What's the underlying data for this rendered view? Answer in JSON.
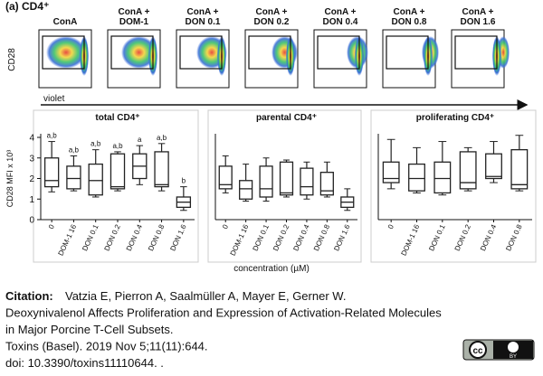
{
  "panel_label": "(a) CD4⁺",
  "flow": {
    "y_label": "CD28",
    "x_label": "violet",
    "plots": [
      {
        "title": [
          "ConA"
        ]
      },
      {
        "title": [
          "ConA +",
          "DOM-1"
        ]
      },
      {
        "title": [
          "ConA +",
          "DON 0.1"
        ]
      },
      {
        "title": [
          "ConA +",
          "DON 0.2"
        ]
      },
      {
        "title": [
          "ConA +",
          "DON 0.4"
        ]
      },
      {
        "title": [
          "ConA +",
          "DON 0.8"
        ]
      },
      {
        "title": [
          "ConA +",
          "DON 1.6"
        ]
      }
    ]
  },
  "chart_data": [
    {
      "type": "box",
      "title": "total CD4⁺",
      "ylabel": "CD28 MFI x 10³",
      "categories": [
        "0",
        "DOM-1 16",
        "DON 0.1",
        "DON 0.2",
        "DON 0.4",
        "DON 0.8",
        "DON 1.6"
      ],
      "min": [
        1.35,
        1.4,
        1.1,
        1.4,
        1.7,
        1.4,
        0.45
      ],
      "q1": [
        1.6,
        1.5,
        1.2,
        1.5,
        2.0,
        1.6,
        0.6
      ],
      "median": [
        1.9,
        2.0,
        1.9,
        1.6,
        2.6,
        1.7,
        0.85
      ],
      "q3": [
        3.0,
        2.6,
        2.7,
        3.2,
        3.2,
        3.3,
        1.1
      ],
      "max": [
        3.8,
        3.1,
        3.4,
        3.3,
        3.6,
        3.7,
        1.6
      ],
      "annotations": [
        "a,b",
        "a,b",
        "a,b",
        "a,b",
        "a",
        "a,b",
        "b"
      ],
      "ylim": [
        0,
        4
      ],
      "yticks": [
        0,
        1,
        2,
        3,
        4
      ],
      "color": "#222222"
    },
    {
      "type": "box",
      "title": "parental CD4⁺",
      "xlabel": "concentration (µM)",
      "categories": [
        "0",
        "DOM-1 16",
        "DON 0.1",
        "DON 0.2",
        "DON 0.4",
        "DON 0.8",
        "DON 1.6"
      ],
      "min": [
        1.3,
        0.9,
        0.9,
        1.1,
        1.0,
        1.1,
        0.45
      ],
      "q1": [
        1.5,
        1.0,
        1.1,
        1.2,
        1.2,
        1.2,
        0.6
      ],
      "median": [
        1.7,
        1.5,
        1.5,
        1.3,
        1.6,
        1.4,
        0.85
      ],
      "q3": [
        2.6,
        1.9,
        2.6,
        2.8,
        2.5,
        2.3,
        1.1
      ],
      "max": [
        3.1,
        2.7,
        3.0,
        2.9,
        2.8,
        2.8,
        1.5
      ],
      "ylim": [
        0,
        4
      ],
      "color": "#222222"
    },
    {
      "type": "box",
      "title": "proliferating CD4⁺",
      "categories": [
        "0",
        "DOM-1 16",
        "DON 0.1",
        "DON 0.2",
        "DON 0.4",
        "DON 0.8"
      ],
      "min": [
        1.5,
        1.3,
        1.2,
        1.4,
        1.8,
        1.4
      ],
      "q1": [
        1.8,
        1.4,
        1.3,
        1.5,
        2.0,
        1.5
      ],
      "median": [
        2.0,
        2.0,
        2.0,
        1.8,
        2.1,
        1.7
      ],
      "q3": [
        2.8,
        2.7,
        2.8,
        3.3,
        3.2,
        3.4
      ],
      "max": [
        3.9,
        3.5,
        3.8,
        3.5,
        3.8,
        4.1
      ],
      "ylim": [
        0,
        4
      ],
      "color": "#222222"
    }
  ],
  "citation": {
    "label": "Citation:",
    "lines": [
      "Vatzia E, Pierron A, Saalmüller A, Mayer E, Gerner W.",
      "Deoxynivalenol Affects Proliferation and Expression of Activation-Related Molecules",
      "in Major Porcine T-Cell Subsets.",
      "Toxins (Basel). 2019 Nov 5;11(11):644.",
      "doi: 10.3390/toxins11110644. ."
    ]
  },
  "license_badge": [
    "cc",
    "BY"
  ]
}
